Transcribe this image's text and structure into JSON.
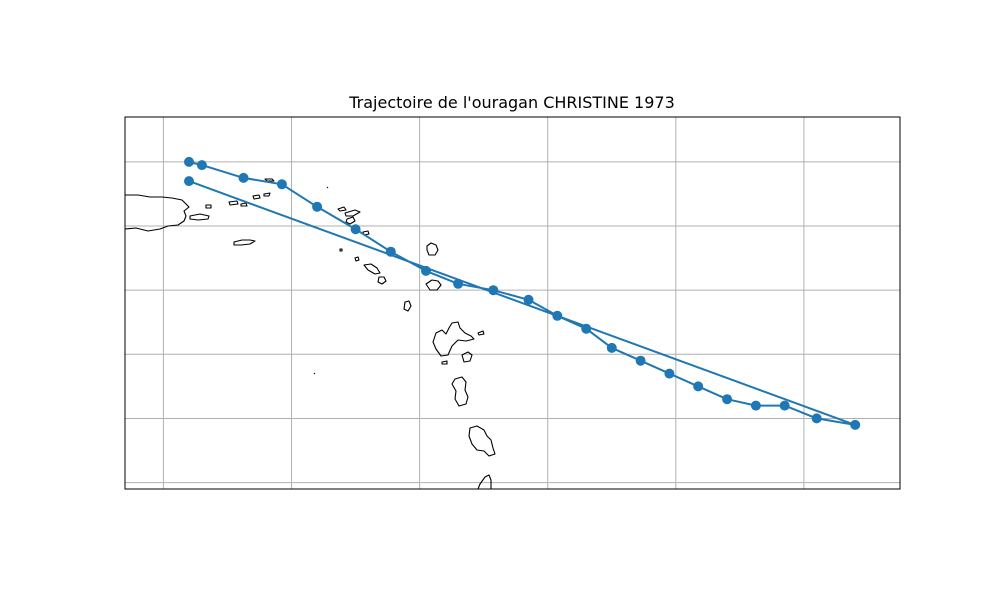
{
  "map": {
    "title": "Trajectoire de l'ouragan CHRISTINE 1973",
    "colors": {
      "track": "#1f77b4",
      "grid": "#b0b0b0",
      "coast": "#000000"
    },
    "extent_lon": [
      -66.3,
      -54.2
    ],
    "extent_lat": [
      12.9,
      18.7
    ],
    "gridlines": {
      "lon": [
        -65.7,
        -63.7,
        -61.7,
        -59.7,
        -57.7,
        -55.7
      ],
      "lat": [
        13.0,
        14.0,
        15.0,
        16.0,
        17.0,
        18.0
      ]
    },
    "track": {
      "lon": [
        -65.3,
        -54.9,
        -55.5,
        -56.0,
        -56.45,
        -56.9,
        -57.35,
        -57.8,
        -58.25,
        -58.7,
        -59.1,
        -59.55,
        -60.0,
        -60.55,
        -61.1,
        -61.6,
        -62.15,
        -62.7,
        -63.3,
        -63.85,
        -64.45,
        -65.1,
        -65.3
      ],
      "lat": [
        17.7,
        13.9,
        14.0,
        14.2,
        14.2,
        14.3,
        14.5,
        14.7,
        14.9,
        15.1,
        15.4,
        15.6,
        15.85,
        16.0,
        16.1,
        16.3,
        16.6,
        16.95,
        17.3,
        17.65,
        17.75,
        17.95,
        18.0
      ]
    }
  }
}
